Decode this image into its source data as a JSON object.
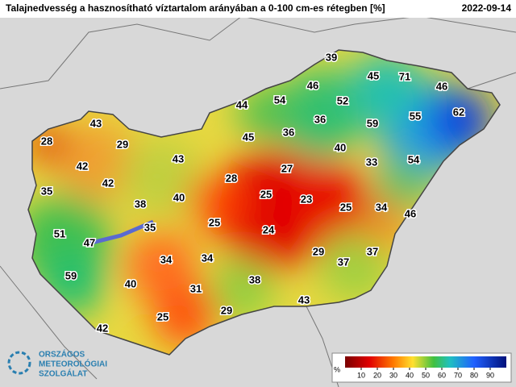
{
  "header": {
    "title": "Talajnedvesség a hasznosítható víztartalom arányában a 0-100 cm-es rétegben [%]",
    "date": "2022-09-14"
  },
  "stations": [
    39,
    45,
    71,
    46,
    46,
    54,
    52,
    44,
    55,
    62,
    43,
    36,
    59,
    45,
    36,
    28,
    29,
    40,
    43,
    33,
    54,
    42,
    27,
    42,
    28,
    35,
    25,
    23,
    25,
    34,
    38,
    40,
    46,
    25,
    35,
    24,
    51,
    47,
    34,
    34,
    29,
    37,
    37,
    59,
    40,
    38,
    31,
    43,
    29,
    25,
    42
  ],
  "colorbar": {
    "unit": "%",
    "ticks": [
      10,
      20,
      30,
      40,
      50,
      60,
      70,
      80,
      90
    ]
  },
  "logo": {
    "lines": [
      "ORSZÁGOS",
      "METEOROLÓGIAI",
      "SZOLGÁLAT"
    ]
  }
}
